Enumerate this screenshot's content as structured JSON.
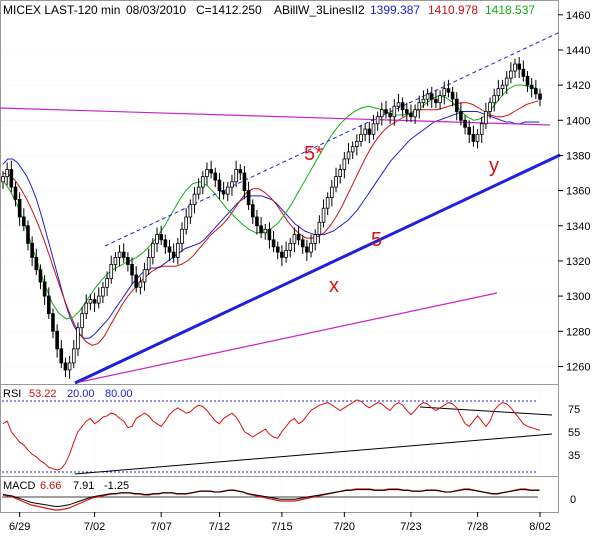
{
  "header": {
    "symbol_line": "MICEX LAST-120 min",
    "date": "08/03/2010",
    "close": "C=1412.250",
    "indicator": "ABillW_3LinesII2",
    "line1": "1399.387",
    "line2": "1410.978",
    "line3": "1418.537"
  },
  "colors": {
    "background": "#ffffff",
    "candle": "#000000",
    "line1": "#1f1fcf",
    "line2": "#d01010",
    "line3": "#10b010",
    "channel": "#1f1fdf",
    "magenta": "#cc22cc",
    "annotation": "#dd1111",
    "rsi_line": "#dd1111",
    "macd_line": "#dd1111",
    "grid": "#888888"
  },
  "annotations": {
    "wave5star": "5*",
    "wave5": "5",
    "x": "x",
    "y": "y"
  },
  "rsi": {
    "label": "RSI",
    "value": "53.22",
    "low": "20.00",
    "high": "80.00",
    "ticks": [
      "75",
      "55",
      "35"
    ]
  },
  "macd": {
    "label": "MACD",
    "v1": "6.66",
    "v2": "7.91",
    "v3": "-1.25",
    "ticks": [
      "0"
    ]
  },
  "chart_data": {
    "type": "candlestick",
    "price_axis": {
      "min": 1250,
      "max": 1465,
      "ticks": [
        1260,
        1280,
        1300,
        1320,
        1340,
        1360,
        1380,
        1400,
        1420,
        1440,
        1460
      ]
    },
    "date_labels": [
      "6/29",
      "7/02",
      "7/07",
      "7/12",
      "7/15",
      "7/20",
      "7/23",
      "7/28",
      "8/02"
    ],
    "date_label_index": [
      4,
      22,
      38,
      52,
      67,
      82,
      98,
      114,
      129
    ],
    "closes": [
      1368,
      1372,
      1362,
      1355,
      1345,
      1340,
      1330,
      1322,
      1315,
      1308,
      1300,
      1290,
      1280,
      1270,
      1262,
      1258,
      1262,
      1270,
      1282,
      1290,
      1296,
      1298,
      1296,
      1300,
      1305,
      1310,
      1318,
      1322,
      1325,
      1322,
      1318,
      1312,
      1305,
      1308,
      1315,
      1322,
      1330,
      1335,
      1332,
      1328,
      1325,
      1322,
      1330,
      1338,
      1345,
      1352,
      1358,
      1362,
      1368,
      1372,
      1370,
      1366,
      1360,
      1358,
      1362,
      1365,
      1372,
      1370,
      1360,
      1352,
      1345,
      1340,
      1336,
      1338,
      1332,
      1328,
      1325,
      1322,
      1326,
      1330,
      1335,
      1332,
      1328,
      1325,
      1330,
      1335,
      1342,
      1350,
      1356,
      1362,
      1368,
      1372,
      1378,
      1382,
      1385,
      1388,
      1392,
      1395,
      1392,
      1398,
      1402,
      1406,
      1404,
      1402,
      1408,
      1410,
      1406,
      1404,
      1402,
      1406,
      1410,
      1412,
      1415,
      1412,
      1410,
      1414,
      1418,
      1416,
      1412,
      1405,
      1400,
      1396,
      1392,
      1388,
      1392,
      1398,
      1405,
      1410,
      1414,
      1418,
      1420,
      1424,
      1428,
      1432,
      1429,
      1425,
      1420,
      1418,
      1415,
      1412
    ],
    "line1_values": [
      1375,
      1378,
      1378,
      1376,
      1372,
      1368,
      1362,
      1355,
      1346,
      1336,
      1326,
      1316,
      1306,
      1296,
      1288,
      1282,
      1278,
      1276,
      1276,
      1278,
      1281,
      1284,
      1287,
      1291,
      1295,
      1299,
      1303,
      1307,
      1310,
      1313,
      1315,
      1316,
      1316,
      1317,
      1319,
      1321,
      1323,
      1325,
      1327,
      1328,
      1329,
      1330,
      1332,
      1335,
      1338,
      1341,
      1344,
      1347,
      1350,
      1353,
      1355,
      1357,
      1357,
      1357,
      1357,
      1356,
      1355,
      1353,
      1350,
      1347,
      1344,
      1341,
      1339,
      1337,
      1336,
      1335,
      1335,
      1335,
      1336,
      1337,
      1339,
      1341,
      1343,
      1346,
      1349,
      1353,
      1357,
      1361,
      1365,
      1369,
      1373,
      1377,
      1380,
      1383,
      1386,
      1389,
      1391,
      1393,
      1395,
      1397,
      1399,
      1400,
      1401,
      1402,
      1403,
      1404,
      1405,
      1405,
      1405,
      1405,
      1404,
      1403,
      1402,
      1401,
      1400,
      1399,
      1399,
      1398,
      1398,
      1399,
      1399,
      1399,
      1399
    ],
    "line2_values": [
      1370,
      1369,
      1366,
      1361,
      1355,
      1348,
      1340,
      1331,
      1321,
      1311,
      1301,
      1292,
      1284,
      1278,
      1274,
      1272,
      1273,
      1277,
      1283,
      1289,
      1295,
      1300,
      1304,
      1308,
      1311,
      1314,
      1316,
      1317,
      1317,
      1317,
      1318,
      1320,
      1323,
      1327,
      1331,
      1335,
      1338,
      1341,
      1345,
      1350,
      1355,
      1359,
      1361,
      1361,
      1359,
      1356,
      1352,
      1347,
      1342,
      1338,
      1335,
      1333,
      1333,
      1334,
      1336,
      1340,
      1345,
      1351,
      1358,
      1365,
      1372,
      1379,
      1385,
      1390,
      1394,
      1397,
      1399,
      1401,
      1403,
      1405,
      1406,
      1406,
      1406,
      1406,
      1407,
      1408,
      1409,
      1410,
      1410,
      1409,
      1407,
      1405,
      1403,
      1402,
      1402,
      1403,
      1405,
      1407,
      1409,
      1410,
      1411
    ],
    "line3_values": [
      1366,
      1360,
      1352,
      1342,
      1330,
      1318,
      1306,
      1296,
      1290,
      1287,
      1288,
      1292,
      1298,
      1304,
      1309,
      1313,
      1316,
      1318,
      1320,
      1322,
      1325,
      1329,
      1334,
      1340,
      1347,
      1354,
      1360,
      1364,
      1365,
      1363,
      1359,
      1354,
      1349,
      1345,
      1341,
      1338,
      1336,
      1336,
      1338,
      1341,
      1346,
      1352,
      1359,
      1366,
      1373,
      1380,
      1387,
      1393,
      1398,
      1402,
      1405,
      1407,
      1408,
      1407,
      1406,
      1404,
      1403,
      1403,
      1404,
      1406,
      1409,
      1412,
      1414,
      1413,
      1410,
      1406,
      1402,
      1400,
      1401,
      1404,
      1409,
      1414,
      1418,
      1420,
      1420,
      1419,
      1418
    ],
    "rsi_axis": {
      "min": 20,
      "max": 85
    },
    "rsi_values": [
      58,
      60,
      52,
      48,
      44,
      42,
      38,
      35,
      33,
      30,
      28,
      25,
      24,
      23,
      24,
      28,
      35,
      44,
      52,
      56,
      60,
      62,
      58,
      60,
      63,
      64,
      66,
      65,
      62,
      60,
      55,
      56,
      62,
      64,
      66,
      64,
      60,
      58,
      56,
      60,
      65,
      68,
      70,
      68,
      66,
      67,
      70,
      72,
      71,
      68,
      64,
      60,
      58,
      62,
      64,
      66,
      63,
      58,
      52,
      50,
      48,
      50,
      52,
      54,
      50,
      48,
      47,
      52,
      56,
      60,
      62,
      58,
      60,
      64,
      68,
      70,
      72,
      73,
      74,
      72,
      70,
      68,
      70,
      72,
      74,
      76,
      75,
      72,
      70,
      72,
      74,
      73,
      70,
      68,
      72,
      74,
      72,
      68,
      65,
      68,
      72,
      74,
      73,
      70,
      68,
      70,
      72,
      74,
      73,
      70,
      64,
      58,
      56,
      60,
      64,
      60,
      56,
      60,
      68,
      72,
      74,
      73,
      70,
      66,
      62,
      58,
      56,
      55,
      54,
      53
    ],
    "macd_values": [
      2,
      1,
      0,
      -2,
      -4,
      -6,
      -8,
      -9,
      -10,
      -11,
      -12,
      -13,
      -13,
      -12,
      -11,
      -9,
      -7,
      -5,
      -3,
      -1,
      0,
      1,
      2,
      3,
      3,
      4,
      4,
      4,
      3,
      3,
      2,
      2,
      3,
      3,
      4,
      4,
      4,
      3,
      3,
      3,
      4,
      5,
      6,
      6,
      6,
      5,
      5,
      6,
      7,
      7,
      6,
      5,
      3,
      2,
      1,
      0,
      -1,
      -2,
      -3,
      -4,
      -4,
      -4,
      -4,
      -3,
      -2,
      -1,
      0,
      1,
      2,
      3,
      4,
      5,
      6,
      7,
      7,
      8,
      8,
      8,
      8,
      7,
      7,
      7,
      8,
      8,
      8,
      7,
      7,
      6,
      6,
      6,
      7,
      7,
      7,
      6,
      5,
      5,
      6,
      7,
      8,
      8,
      7,
      6,
      5,
      4,
      3,
      3,
      4,
      5,
      6,
      7,
      8,
      8,
      7,
      7,
      7
    ]
  }
}
